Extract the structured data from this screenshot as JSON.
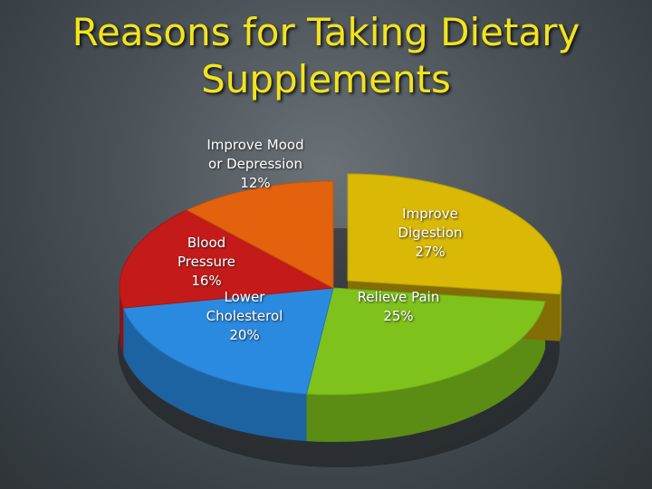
{
  "chart_data": {
    "type": "pie",
    "title": "Reasons for Taking Dietary Supplements",
    "categories": [
      "Improve Digestion",
      "Relieve Pain",
      "Lower Cholesterol",
      "Blood Pressure",
      "Improve Mood or Depression"
    ],
    "values": [
      27,
      25,
      20,
      16,
      12
    ],
    "value_labels": [
      "27%",
      "25%",
      "20%",
      "16%",
      "12%"
    ],
    "colors": [
      "#d9b806",
      "#7fc21c",
      "#2a8ae0",
      "#c41a1a",
      "#e2620e"
    ]
  }
}
